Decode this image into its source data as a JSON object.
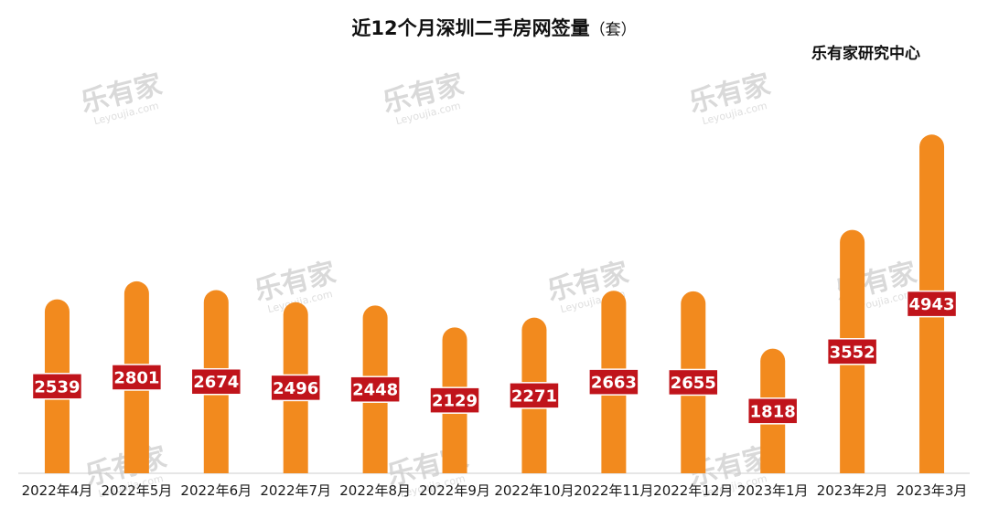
{
  "chart_data": {
    "type": "bar",
    "title": "近12个月深圳二手房网签量",
    "title_unit": "（套）",
    "source": "乐有家研究中心",
    "categories": [
      "2022年4月",
      "2022年5月",
      "2022年6月",
      "2022年7月",
      "2022年8月",
      "2022年9月",
      "2022年10月",
      "2022年11月",
      "2022年12月",
      "2023年1月",
      "2023年2月",
      "2023年3月"
    ],
    "values": [
      2539,
      2801,
      2674,
      2496,
      2448,
      2129,
      2271,
      2663,
      2655,
      1818,
      3552,
      4943
    ],
    "ylim": [
      0,
      5000
    ],
    "grid": false,
    "legend": "none",
    "colors": {
      "bar": "#f28a1e",
      "label_bg": "#c0141b",
      "label_text": "#ffffff",
      "axis": "#cccccc"
    }
  },
  "watermark": {
    "brand": "乐有家",
    "domain": "Leyoujia.com"
  }
}
